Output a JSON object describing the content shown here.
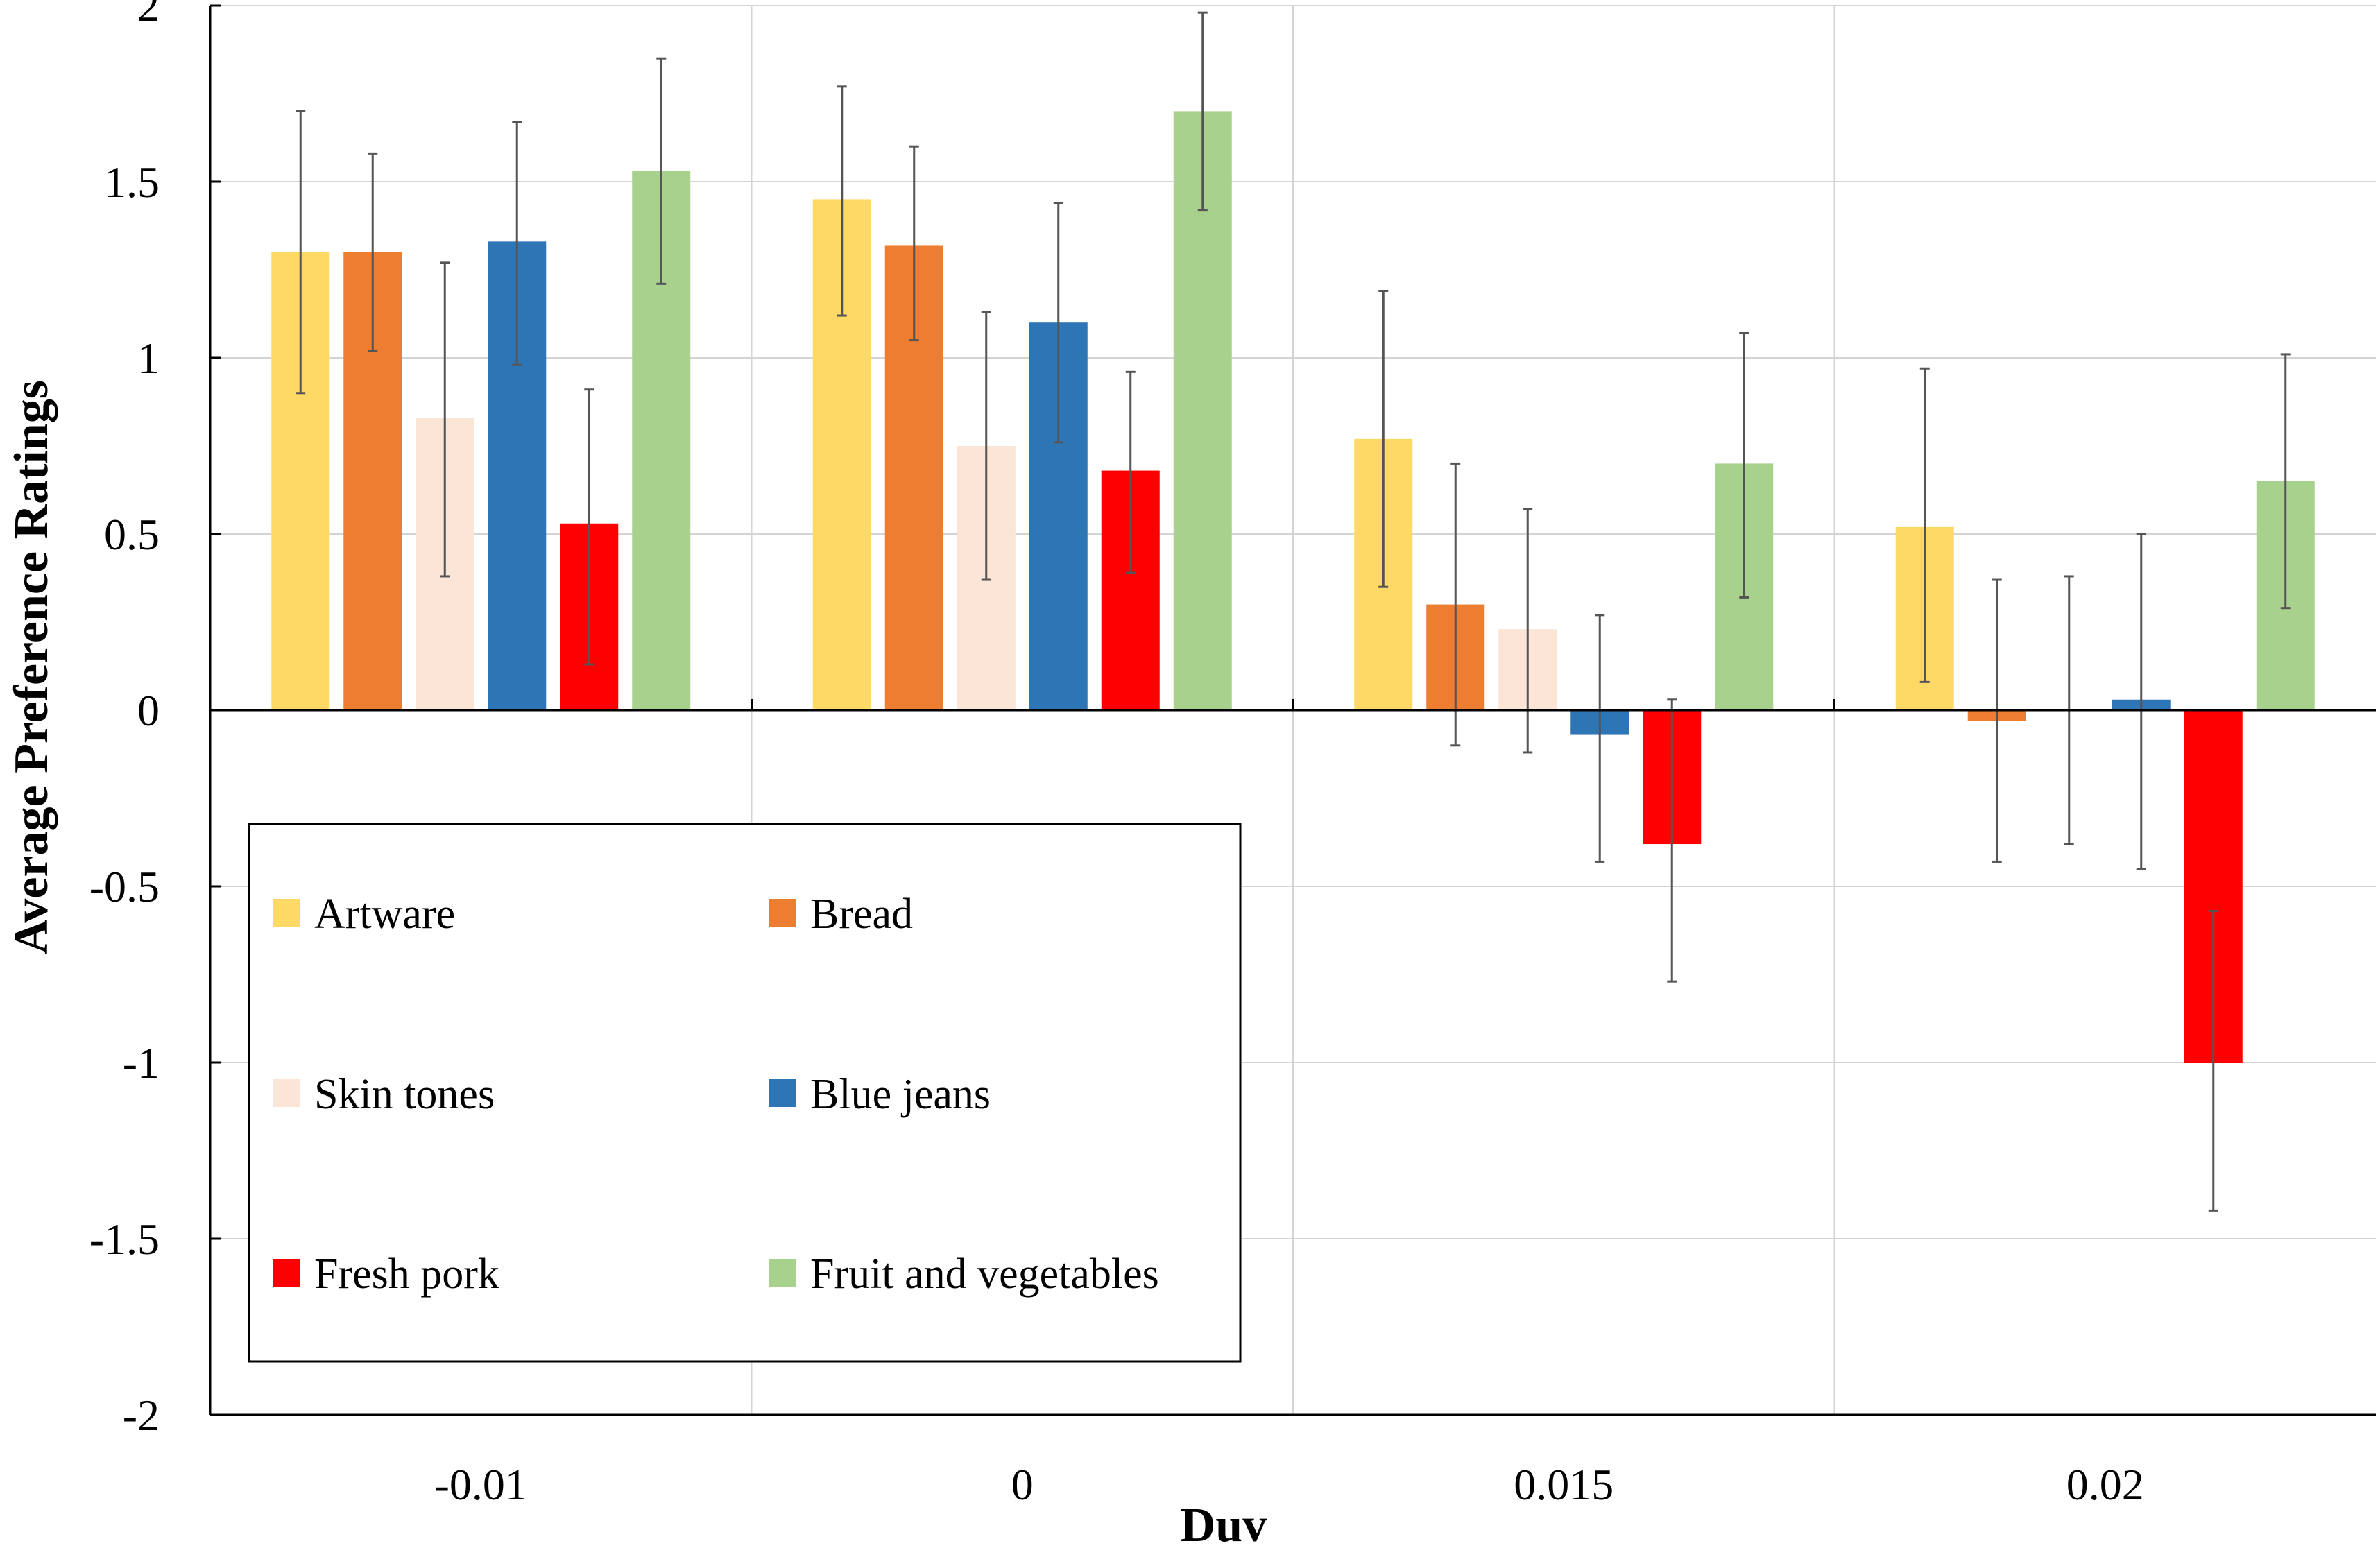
{
  "chart_data": {
    "type": "bar",
    "title": "",
    "xlabel": "Duv",
    "ylabel": "Average Preference Ratings",
    "categories": [
      "-0.01",
      "0",
      "0.015",
      "0.02"
    ],
    "ylim": [
      -2,
      2
    ],
    "yticks": [
      "2",
      "1.5",
      "1",
      "0.5",
      "0",
      "-0.5",
      "-1",
      "-1.5",
      "-2"
    ],
    "ytick_values": [
      2,
      1.5,
      1,
      0.5,
      0,
      -0.5,
      -1,
      -1.5,
      -2
    ],
    "grid": true,
    "legend_position": "lower-left",
    "series": [
      {
        "name": "Artware",
        "color": "#FFD966",
        "values": [
          1.3,
          1.45,
          0.77,
          0.52
        ],
        "err_low": [
          0.9,
          1.12,
          0.35,
          0.08
        ],
        "err_high": [
          1.7,
          1.77,
          1.19,
          0.97
        ]
      },
      {
        "name": "Bread",
        "color": "#ED7D31",
        "values": [
          1.3,
          1.32,
          0.3,
          -0.03
        ],
        "err_low": [
          1.02,
          1.05,
          -0.1,
          -0.43
        ],
        "err_high": [
          1.58,
          1.6,
          0.7,
          0.37
        ]
      },
      {
        "name": "Skin tones",
        "color": "#FBE5D6",
        "values": [
          0.83,
          0.75,
          0.23,
          0.0
        ],
        "err_low": [
          0.38,
          0.37,
          -0.12,
          -0.38
        ],
        "err_high": [
          1.27,
          1.13,
          0.57,
          0.38
        ]
      },
      {
        "name": "Blue jeans",
        "color": "#2E75B6",
        "values": [
          1.33,
          1.1,
          -0.07,
          0.03
        ],
        "err_low": [
          0.98,
          0.76,
          -0.43,
          -0.45
        ],
        "err_high": [
          1.67,
          1.44,
          0.27,
          0.5
        ]
      },
      {
        "name": "Fresh pork",
        "color": "#FF0000",
        "values": [
          0.53,
          0.68,
          -0.38,
          -1.0
        ],
        "err_low": [
          0.13,
          0.39,
          -0.77,
          -1.42
        ],
        "err_high": [
          0.91,
          0.96,
          0.03,
          -0.57
        ]
      },
      {
        "name": "Fruit and vegetables",
        "color": "#A9D18E",
        "values": [
          1.53,
          1.7,
          0.7,
          0.65
        ],
        "err_low": [
          1.21,
          1.42,
          0.32,
          0.29
        ],
        "err_high": [
          1.85,
          1.98,
          1.07,
          1.01
        ]
      }
    ]
  }
}
